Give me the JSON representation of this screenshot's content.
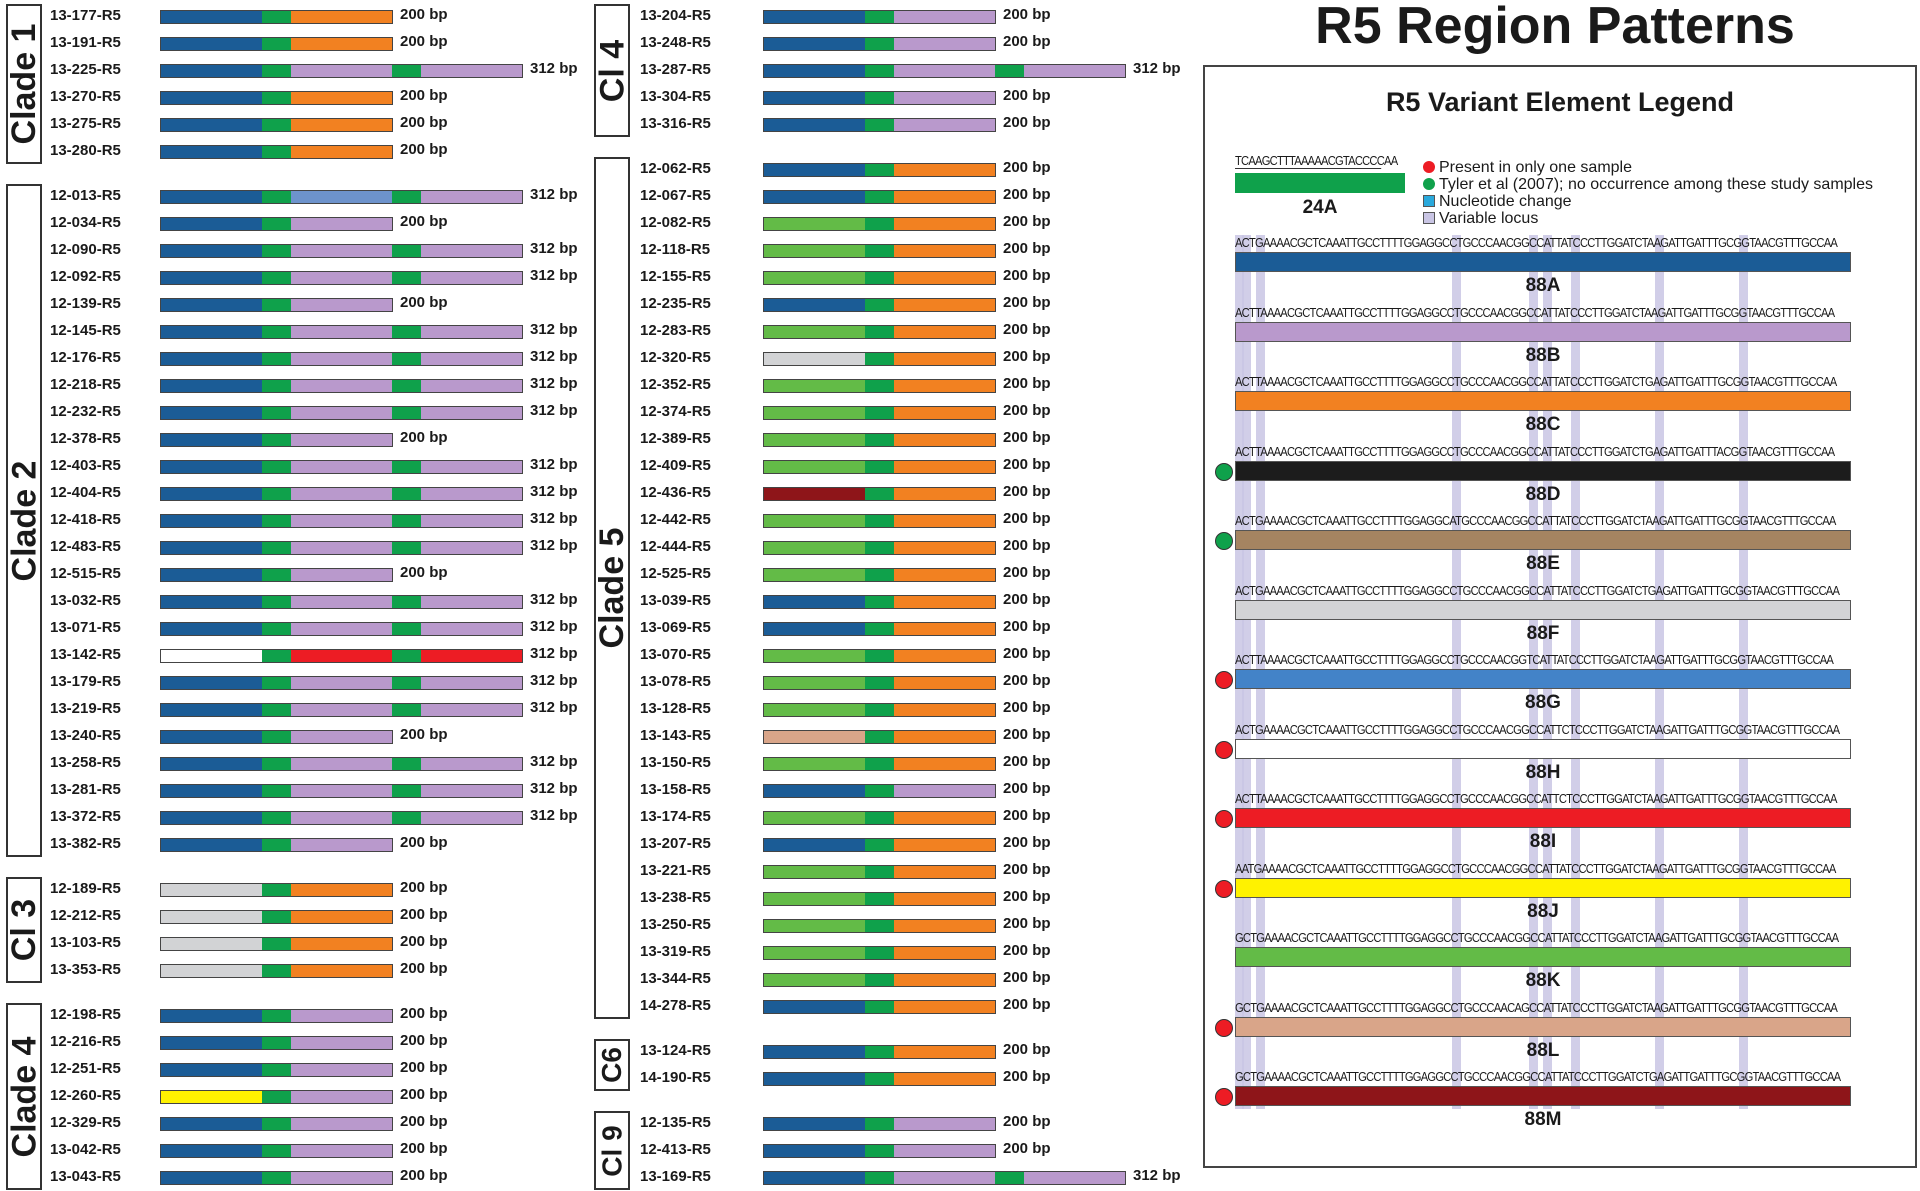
{
  "title": "R5 Region Patterns",
  "colors": {
    "dark_blue": "#1b5c96",
    "green_24A": "#0fa14b",
    "orange": "#f28121",
    "lilac": "#b999cc",
    "light_blue": "#6d93cc",
    "red": "#ed1c24",
    "white": "#ffffff",
    "light_gray": "#d2d3d5",
    "yellow": "#fff200",
    "light_green": "#63bb47",
    "dark_red": "#8e1519",
    "tan": "#d9a589",
    "black": "#1c1c1c",
    "brown": "#a58461",
    "medium_blue": "#4383c8",
    "nucleotide_change": "#2aa9dc",
    "variable_locus": "#c9c5e4"
  },
  "groups": [
    {
      "label": "Clade 1",
      "column": "left",
      "samples": [
        {
          "id": "13-177-R5",
          "segments": [
            "dark_blue",
            "orange"
          ],
          "size": "200 bp"
        },
        {
          "id": "13-191-R5",
          "segments": [
            "dark_blue",
            "orange"
          ],
          "size": "200 bp"
        },
        {
          "id": "13-225-R5",
          "segments": [
            "dark_blue",
            "lilac",
            "lilac"
          ],
          "size": "312 bp"
        },
        {
          "id": "13-270-R5",
          "segments": [
            "dark_blue",
            "orange"
          ],
          "size": "200 bp"
        },
        {
          "id": "13-275-R5",
          "segments": [
            "dark_blue",
            "orange"
          ],
          "size": "200 bp"
        },
        {
          "id": "13-280-R5",
          "segments": [
            "dark_blue",
            "orange"
          ],
          "size": "200 bp"
        }
      ]
    },
    {
      "label": "Clade 2",
      "column": "left",
      "samples": [
        {
          "id": "12-013-R5",
          "segments": [
            "dark_blue",
            "light_blue",
            "lilac"
          ],
          "size": "312 bp"
        },
        {
          "id": "12-034-R5",
          "segments": [
            "dark_blue",
            "lilac"
          ],
          "size": "200 bp"
        },
        {
          "id": "12-090-R5",
          "segments": [
            "dark_blue",
            "lilac",
            "lilac"
          ],
          "size": "312 bp"
        },
        {
          "id": "12-092-R5",
          "segments": [
            "dark_blue",
            "lilac",
            "lilac"
          ],
          "size": "312 bp"
        },
        {
          "id": "12-139-R5",
          "segments": [
            "dark_blue",
            "lilac"
          ],
          "size": "200 bp"
        },
        {
          "id": "12-145-R5",
          "segments": [
            "dark_blue",
            "lilac",
            "lilac"
          ],
          "size": "312 bp"
        },
        {
          "id": "12-176-R5",
          "segments": [
            "dark_blue",
            "lilac",
            "lilac"
          ],
          "size": "312 bp"
        },
        {
          "id": "12-218-R5",
          "segments": [
            "dark_blue",
            "lilac",
            "lilac"
          ],
          "size": "312 bp"
        },
        {
          "id": "12-232-R5",
          "segments": [
            "dark_blue",
            "lilac",
            "lilac"
          ],
          "size": "312 bp"
        },
        {
          "id": "12-378-R5",
          "segments": [
            "dark_blue",
            "lilac"
          ],
          "size": "200 bp"
        },
        {
          "id": "12-403-R5",
          "segments": [
            "dark_blue",
            "lilac",
            "lilac"
          ],
          "size": "312 bp"
        },
        {
          "id": "12-404-R5",
          "segments": [
            "dark_blue",
            "lilac",
            "lilac"
          ],
          "size": "312 bp"
        },
        {
          "id": "12-418-R5",
          "segments": [
            "dark_blue",
            "lilac",
            "lilac"
          ],
          "size": "312 bp"
        },
        {
          "id": "12-483-R5",
          "segments": [
            "dark_blue",
            "lilac",
            "lilac"
          ],
          "size": "312 bp"
        },
        {
          "id": "12-515-R5",
          "segments": [
            "dark_blue",
            "lilac"
          ],
          "size": "200 bp"
        },
        {
          "id": "13-032-R5",
          "segments": [
            "dark_blue",
            "lilac",
            "lilac"
          ],
          "size": "312 bp"
        },
        {
          "id": "13-071-R5",
          "segments": [
            "dark_blue",
            "lilac",
            "lilac"
          ],
          "size": "312 bp"
        },
        {
          "id": "13-142-R5",
          "segments": [
            "white",
            "red",
            "red"
          ],
          "size": "312 bp"
        },
        {
          "id": "13-179-R5",
          "segments": [
            "dark_blue",
            "lilac",
            "lilac"
          ],
          "size": "312 bp"
        },
        {
          "id": "13-219-R5",
          "segments": [
            "dark_blue",
            "lilac",
            "lilac"
          ],
          "size": "312 bp"
        },
        {
          "id": "13-240-R5",
          "segments": [
            "dark_blue",
            "lilac"
          ],
          "size": "200 bp"
        },
        {
          "id": "13-258-R5",
          "segments": [
            "dark_blue",
            "lilac",
            "lilac"
          ],
          "size": "312 bp"
        },
        {
          "id": "13-281-R5",
          "segments": [
            "dark_blue",
            "lilac",
            "lilac"
          ],
          "size": "312 bp"
        },
        {
          "id": "13-372-R5",
          "segments": [
            "dark_blue",
            "lilac",
            "lilac"
          ],
          "size": "312 bp"
        },
        {
          "id": "13-382-R5",
          "segments": [
            "dark_blue",
            "lilac"
          ],
          "size": "200 bp"
        }
      ]
    },
    {
      "label": "Cl 3",
      "column": "left",
      "samples": [
        {
          "id": "12-189-R5",
          "segments": [
            "light_gray",
            "orange"
          ],
          "size": "200 bp"
        },
        {
          "id": "12-212-R5",
          "segments": [
            "light_gray",
            "orange"
          ],
          "size": "200 bp"
        },
        {
          "id": "13-103-R5",
          "segments": [
            "light_gray",
            "orange"
          ],
          "size": "200 bp"
        },
        {
          "id": "13-353-R5",
          "segments": [
            "light_gray",
            "orange"
          ],
          "size": "200 bp"
        }
      ]
    },
    {
      "label": "Clade 4",
      "column": "left",
      "samples": [
        {
          "id": "12-198-R5",
          "segments": [
            "dark_blue",
            "lilac"
          ],
          "size": "200 bp"
        },
        {
          "id": "12-216-R5",
          "segments": [
            "dark_blue",
            "lilac"
          ],
          "size": "200 bp"
        },
        {
          "id": "12-251-R5",
          "segments": [
            "dark_blue",
            "lilac"
          ],
          "size": "200 bp"
        },
        {
          "id": "12-260-R5",
          "segments": [
            "yellow",
            "lilac"
          ],
          "size": "200 bp"
        },
        {
          "id": "12-329-R5",
          "segments": [
            "dark_blue",
            "lilac"
          ],
          "size": "200 bp"
        },
        {
          "id": "13-042-R5",
          "segments": [
            "dark_blue",
            "lilac"
          ],
          "size": "200 bp"
        },
        {
          "id": "13-043-R5",
          "segments": [
            "dark_blue",
            "lilac"
          ],
          "size": "200 bp"
        }
      ]
    },
    {
      "label": "Cl 4",
      "column": "middle",
      "samples": [
        {
          "id": "13-204-R5",
          "segments": [
            "dark_blue",
            "lilac"
          ],
          "size": "200 bp"
        },
        {
          "id": "13-248-R5",
          "segments": [
            "dark_blue",
            "lilac"
          ],
          "size": "200 bp"
        },
        {
          "id": "13-287-R5",
          "segments": [
            "dark_blue",
            "lilac",
            "lilac"
          ],
          "size": "312 bp"
        },
        {
          "id": "13-304-R5",
          "segments": [
            "dark_blue",
            "lilac"
          ],
          "size": "200 bp"
        },
        {
          "id": "13-316-R5",
          "segments": [
            "dark_blue",
            "lilac"
          ],
          "size": "200 bp"
        }
      ]
    },
    {
      "label": "Clade 5",
      "column": "middle",
      "samples": [
        {
          "id": "12-062-R5",
          "segments": [
            "dark_blue",
            "orange"
          ],
          "size": "200 bp"
        },
        {
          "id": "12-067-R5",
          "segments": [
            "dark_blue",
            "orange"
          ],
          "size": "200 bp"
        },
        {
          "id": "12-082-R5",
          "segments": [
            "light_green",
            "orange"
          ],
          "size": "200 bp"
        },
        {
          "id": "12-118-R5",
          "segments": [
            "light_green",
            "orange"
          ],
          "size": "200 bp"
        },
        {
          "id": "12-155-R5",
          "segments": [
            "light_green",
            "orange"
          ],
          "size": "200 bp"
        },
        {
          "id": "12-235-R5",
          "segments": [
            "dark_blue",
            "orange"
          ],
          "size": "200 bp"
        },
        {
          "id": "12-283-R5",
          "segments": [
            "light_green",
            "orange"
          ],
          "size": "200 bp"
        },
        {
          "id": "12-320-R5",
          "segments": [
            "light_gray",
            "orange"
          ],
          "size": "200 bp"
        },
        {
          "id": "12-352-R5",
          "segments": [
            "light_green",
            "orange"
          ],
          "size": "200 bp"
        },
        {
          "id": "12-374-R5",
          "segments": [
            "light_green",
            "orange"
          ],
          "size": "200 bp"
        },
        {
          "id": "12-389-R5",
          "segments": [
            "light_green",
            "orange"
          ],
          "size": "200 bp"
        },
        {
          "id": "12-409-R5",
          "segments": [
            "light_green",
            "orange"
          ],
          "size": "200 bp"
        },
        {
          "id": "12-436-R5",
          "segments": [
            "dark_red",
            "orange"
          ],
          "size": "200 bp"
        },
        {
          "id": "12-442-R5",
          "segments": [
            "light_green",
            "orange"
          ],
          "size": "200 bp"
        },
        {
          "id": "12-444-R5",
          "segments": [
            "light_green",
            "orange"
          ],
          "size": "200 bp"
        },
        {
          "id": "12-525-R5",
          "segments": [
            "light_green",
            "orange"
          ],
          "size": "200 bp"
        },
        {
          "id": "13-039-R5",
          "segments": [
            "dark_blue",
            "orange"
          ],
          "size": "200 bp"
        },
        {
          "id": "13-069-R5",
          "segments": [
            "dark_blue",
            "orange"
          ],
          "size": "200 bp"
        },
        {
          "id": "13-070-R5",
          "segments": [
            "light_green",
            "orange"
          ],
          "size": "200 bp"
        },
        {
          "id": "13-078-R5",
          "segments": [
            "light_green",
            "orange"
          ],
          "size": "200 bp"
        },
        {
          "id": "13-128-R5",
          "segments": [
            "light_green",
            "orange"
          ],
          "size": "200 bp"
        },
        {
          "id": "13-143-R5",
          "segments": [
            "tan",
            "orange"
          ],
          "size": "200 bp"
        },
        {
          "id": "13-150-R5",
          "segments": [
            "light_green",
            "orange"
          ],
          "size": "200 bp"
        },
        {
          "id": "13-158-R5",
          "segments": [
            "dark_blue",
            "lilac"
          ],
          "size": "200 bp"
        },
        {
          "id": "13-174-R5",
          "segments": [
            "light_green",
            "orange"
          ],
          "size": "200 bp"
        },
        {
          "id": "13-207-R5",
          "segments": [
            "dark_blue",
            "orange"
          ],
          "size": "200 bp"
        },
        {
          "id": "13-221-R5",
          "segments": [
            "light_green",
            "orange"
          ],
          "size": "200 bp"
        },
        {
          "id": "13-238-R5",
          "segments": [
            "light_green",
            "orange"
          ],
          "size": "200 bp"
        },
        {
          "id": "13-250-R5",
          "segments": [
            "light_green",
            "orange"
          ],
          "size": "200 bp"
        },
        {
          "id": "13-319-R5",
          "segments": [
            "light_green",
            "orange"
          ],
          "size": "200 bp"
        },
        {
          "id": "13-344-R5",
          "segments": [
            "light_green",
            "orange"
          ],
          "size": "200 bp"
        },
        {
          "id": "14-278-R5",
          "segments": [
            "dark_blue",
            "orange"
          ],
          "size": "200 bp"
        }
      ]
    },
    {
      "label": "C6",
      "column": "middle",
      "samples": [
        {
          "id": "13-124-R5",
          "segments": [
            "dark_blue",
            "orange"
          ],
          "size": "200 bp"
        },
        {
          "id": "14-190-R5",
          "segments": [
            "dark_blue",
            "orange"
          ],
          "size": "200 bp"
        }
      ]
    },
    {
      "label": "Cl 9",
      "column": "middle",
      "samples": [
        {
          "id": "12-135-R5",
          "segments": [
            "dark_blue",
            "lilac"
          ],
          "size": "200 bp"
        },
        {
          "id": "12-413-R5",
          "segments": [
            "dark_blue",
            "lilac"
          ],
          "size": "200 bp"
        },
        {
          "id": "13-169-R5",
          "segments": [
            "dark_blue",
            "lilac",
            "lilac"
          ],
          "size": "312 bp"
        }
      ]
    }
  ],
  "legend": {
    "title": "R5 Variant Element Legend",
    "element_24A": {
      "sequence": "TCAAGCTTTAAAAACGTACCCCAA",
      "name": "24A",
      "color": "green_24A"
    },
    "keys": [
      {
        "label": "Present in only one sample",
        "symbol": "red-dot",
        "color": "#ed1c24"
      },
      {
        "label": "Tyler et al (2007); no occurrence among these study samples",
        "symbol": "green-dot",
        "color": "#0fa14b"
      },
      {
        "label": "Nucleotide change",
        "symbol": "cyan-square",
        "color": "#2aa9dc"
      },
      {
        "label": "Variable locus",
        "symbol": "lavender-square",
        "color": "#c9c5e4"
      }
    ],
    "variants": [
      {
        "name": "88A",
        "sequence": "ACTGAAAACGCTCAAATTGCCTTTTGGAGGCCTGCCCAACGGCCATTATCCCTTGGATCTAAGATTGATTTGCGGTAACGTTTGCCAA",
        "color": "dark_blue",
        "indicator": null
      },
      {
        "name": "88B",
        "sequence": "ACTTAAAACGCTCAAATTGCCTTTTGGAGGCCTGCCCAACGGCCATTATCCCTTGGATCTAAGATTGATTTGCGGTAACGTTTGCCAA",
        "color": "lilac",
        "indicator": null
      },
      {
        "name": "88C",
        "sequence": "ACTTAAAACGCTCAAATTGCCTTTTGGAGGCCTGCCCAACGGCCATTATCCCTTGGATCTGAGATTGATTTGCGGTAACGTTTGCCAA",
        "color": "orange",
        "indicator": null
      },
      {
        "name": "88D",
        "sequence": "ACTTAAAACGCTCAAATTGCCTTTTGGAGGCCTGCCCAACGGCCATTATCCCTTGGATCTGAGATTGATTTACGGTAACGTTTGCCAA",
        "color": "black",
        "indicator": "green"
      },
      {
        "name": "88E",
        "sequence": "ACTGAAAACGCTCAAATTGCCTTTTGGAGGCATGCCCAACGGCCATTATCCCTTGGATCTAAGATTGATTTGCGGTAACGTTTGCCAA",
        "color": "brown",
        "indicator": "green"
      },
      {
        "name": "88F",
        "sequence": "ACTGAAAACGCTCAAATTGCCTTTTGGAGGCCTGCCCAACGGCCATTATCCCTTGGATCTGAGATTGATTTGCGGTAACGTTTGCCAA",
        "color": "light_gray",
        "indicator": null
      },
      {
        "name": "88G",
        "sequence": "ACTTAAAACGCTCAAATTGCCTTTTGGAGGCCTGCCCAACGGTCATTATCCCTTGGATCTAAGATTGATTTGCGGTAACGTTTGCCAA",
        "color": "medium_blue",
        "indicator": "red"
      },
      {
        "name": "88H",
        "sequence": "ACTGAAAACGCTCAAATTGCCTTTTGGAGGCCTGCCCAACGGCCATTCTCCCTTGGATCTAAGATTGATTTGCGGTAACGTTTGCCAA",
        "color": "white",
        "indicator": "red"
      },
      {
        "name": "88I",
        "sequence": "ACTTAAAACGCTCAAATTGCCTTTTGGAGGCCTGCCCAACGGCCATTCTCCCTTGGATCTAAGATTGATTTGCGGTAACGTTTGCCAA",
        "color": "red",
        "indicator": "red"
      },
      {
        "name": "88J",
        "sequence": "AATGAAAACGCTCAAATTGCCTTTTGGAGGCCTGCCCAACGGCCATTATCCCTTGGATCTAAGATTGATTTGCGGTAACGTTTGCCAA",
        "color": "yellow",
        "indicator": "red"
      },
      {
        "name": "88K",
        "sequence": "GCTGAAAACGCTCAAATTGCCTTTTGGAGGCCTGCCCAACGGCCATTATCCCTTGGATCTAAGATTGATTTGCGGTAACGTTTGCCAA",
        "color": "light_green",
        "indicator": null
      },
      {
        "name": "88L",
        "sequence": "GCTGAAAACGCTCAAATTGCCTTTTGGAGGCCTGCCCAACAGCCATTATCCCTTGGATCTAAGATTGATTTGCGGTAACGTTTGCCAA",
        "color": "tan",
        "indicator": "red"
      },
      {
        "name": "88M",
        "sequence": "GCTGAAAACGCTCAAATTGCCTTTTGGAGGCCTGCCCAACGGCCATTATCCCTTGGATCTGAGATTGATTTGCGGTAACGTTTGCCAA",
        "color": "dark_red",
        "indicator": "red"
      }
    ]
  }
}
